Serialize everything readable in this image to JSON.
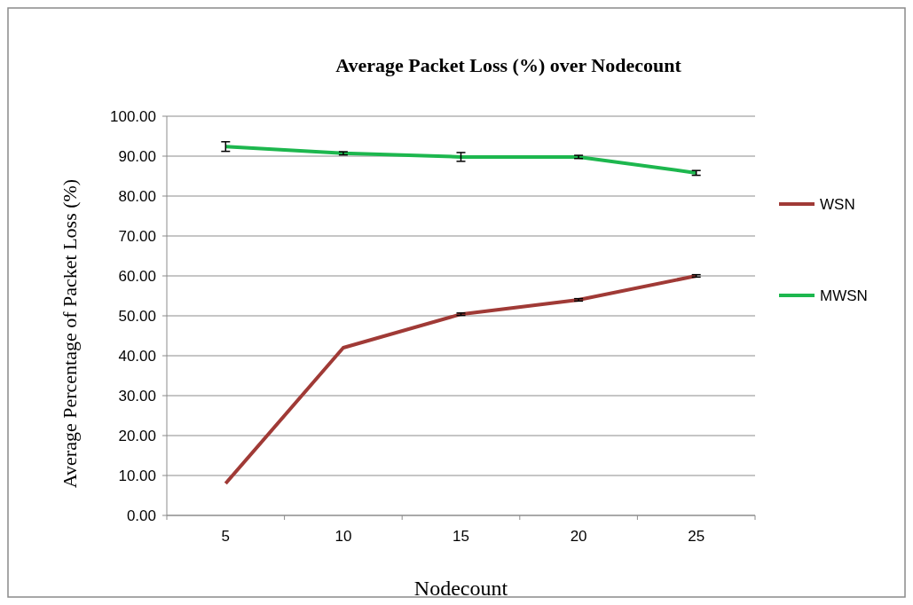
{
  "chart_data": {
    "type": "line",
    "title": "Average Packet Loss (%) over Nodecount",
    "xlabel": "Nodecount",
    "ylabel": "Average Percentage of Packet Loss (%)",
    "categories": [
      "5",
      "10",
      "15",
      "20",
      "25"
    ],
    "series": [
      {
        "name": "WSN",
        "color": "#a03a36",
        "values": [
          8.0,
          42.0,
          50.4,
          54.0,
          60.0
        ],
        "errors": [
          null,
          null,
          0.3,
          0.3,
          0.3
        ]
      },
      {
        "name": "MWSN",
        "color": "#1db74e",
        "values": [
          92.4,
          90.7,
          89.8,
          89.8,
          85.8
        ],
        "errors": [
          1.2,
          0.4,
          1.1,
          0.4,
          0.6
        ]
      }
    ],
    "ylim": [
      0,
      100
    ],
    "yticks": [
      {
        "value": 0,
        "label": "0.00"
      },
      {
        "value": 10,
        "label": "10.00"
      },
      {
        "value": 20,
        "label": "20.00"
      },
      {
        "value": 30,
        "label": "30.00"
      },
      {
        "value": 40,
        "label": "40.00"
      },
      {
        "value": 50,
        "label": "50.00"
      },
      {
        "value": 60,
        "label": "60.00"
      },
      {
        "value": 70,
        "label": "70.00"
      },
      {
        "value": 80,
        "label": "80.00"
      },
      {
        "value": 90,
        "label": "90.00"
      },
      {
        "value": 100,
        "label": "100.00"
      }
    ],
    "grid": "y",
    "legend": "right",
    "marker": "none",
    "line_style": "solid"
  }
}
